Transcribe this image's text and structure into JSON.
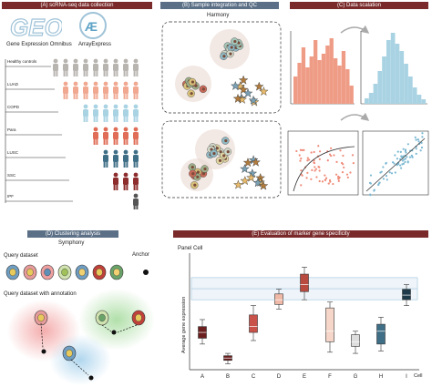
{
  "panelA": {
    "title": "(A) scRNA-seq data collection",
    "logo_geo_text": "GEO",
    "db1": "Gene Expression Omnibus",
    "db2": "ArrayExpress",
    "groups": [
      {
        "label": "Healthy controls",
        "color": "#b8b4b0",
        "count": 9
      },
      {
        "label": "LUAD",
        "color": "#f0a891",
        "count": 8
      },
      {
        "label": "COPD",
        "color": "#a9d3e3",
        "count": 6
      },
      {
        "label": "Para",
        "color": "#e06d57",
        "count": 5
      },
      {
        "label": "LUSC",
        "color": "#3f6f86",
        "count": 4
      },
      {
        "label": "SSC",
        "color": "#8d2d2d",
        "count": 3
      },
      {
        "label": "IPF",
        "color": "#555555",
        "count": 1
      }
    ]
  },
  "panelB": {
    "title": "(B) Sample integration and QC",
    "subtitle": "Harmony"
  },
  "panelC": {
    "title": "(C) Data scalation"
  },
  "panelD": {
    "title": "(D) Clustering analysis",
    "subtitle": "Symphony",
    "query_label": "Query dataset",
    "anchor_label": "Anchor",
    "annot_label": "Query dataset with annotation"
  },
  "panelE": {
    "title": "(E) Evaluation of marker gene specificity",
    "y_axis_label": "Average gene expression",
    "x_axis_label": "Cell",
    "panel_label": "Panel Cell"
  },
  "chart_data": {
    "type": "box",
    "categories": [
      "A",
      "B",
      "C",
      "D",
      "E",
      "F",
      "G",
      "H",
      "I"
    ],
    "colors": [
      "#6b1f1f",
      "#6b1f1f",
      "#c9524a",
      "#f0b8a6",
      "#b84a40",
      "#f6d6c8",
      "#dddddd",
      "#3f6f86",
      "#1e3a4a"
    ],
    "boxes": [
      {
        "min": 0.22,
        "q1": 0.27,
        "median": 0.32,
        "q3": 0.37,
        "max": 0.43
      },
      {
        "min": 0.05,
        "q1": 0.08,
        "median": 0.1,
        "q3": 0.12,
        "max": 0.14
      },
      {
        "min": 0.25,
        "q1": 0.32,
        "median": 0.37,
        "q3": 0.47,
        "max": 0.55
      },
      {
        "min": 0.52,
        "q1": 0.56,
        "median": 0.6,
        "q3": 0.65,
        "max": 0.69
      },
      {
        "min": 0.6,
        "q1": 0.67,
        "median": 0.73,
        "q3": 0.82,
        "max": 0.88
      },
      {
        "min": 0.15,
        "q1": 0.24,
        "median": 0.33,
        "q3": 0.53,
        "max": 0.58
      },
      {
        "min": 0.14,
        "q1": 0.2,
        "median": 0.24,
        "q3": 0.3,
        "max": 0.33
      },
      {
        "min": 0.16,
        "q1": 0.22,
        "median": 0.33,
        "q3": 0.39,
        "max": 0.45
      },
      {
        "min": 0.55,
        "q1": 0.6,
        "median": 0.64,
        "q3": 0.69,
        "max": 0.73
      }
    ],
    "ylim": [
      0,
      1
    ],
    "reference_band": [
      0.6,
      0.79
    ]
  }
}
